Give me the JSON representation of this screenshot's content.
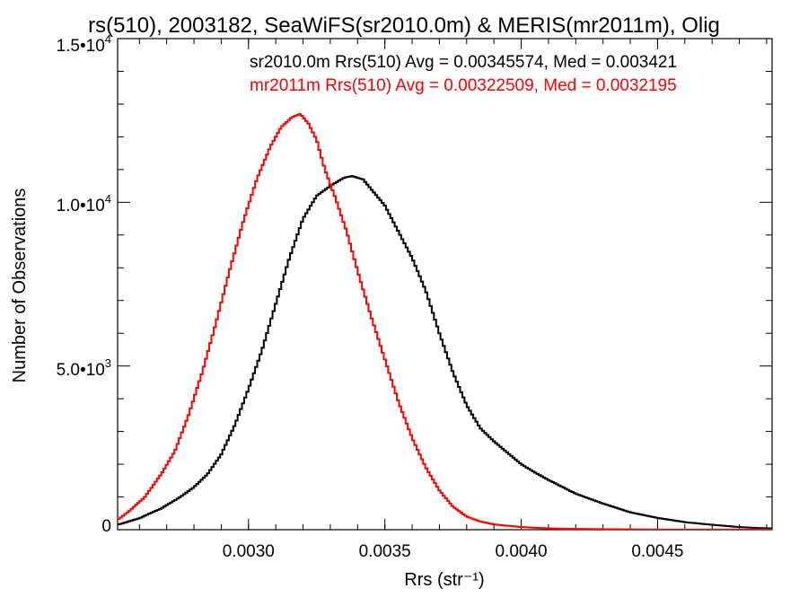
{
  "chart_data": {
    "type": "line",
    "title": "rs(510), 2003182, SeaWiFS(sr2010.0m) & MERIS(mr2011m), Olig",
    "xlabel": "Rrs (str⁻¹)",
    "ylabel": "Number of Observations",
    "xlim": [
      0.00252,
      0.00492
    ],
    "ylim": [
      0,
      15000
    ],
    "grid": false,
    "x_ticks": [
      {
        "value": 0.003,
        "label": "0.0030"
      },
      {
        "value": 0.0035,
        "label": "0.0035"
      },
      {
        "value": 0.004,
        "label": "0.0040"
      },
      {
        "value": 0.0045,
        "label": "0.0045"
      }
    ],
    "y_ticks": [
      {
        "value": 0,
        "label": "0"
      },
      {
        "value": 5000,
        "label": "5.0•103"
      },
      {
        "value": 10000,
        "label": "1.0•104"
      },
      {
        "value": 15000,
        "label": "1.5•104"
      }
    ],
    "y_tick_labels": {
      "t0": "0",
      "t1_mant": "5.0•10",
      "t1_exp": "3",
      "t2_mant": "1.0•10",
      "t2_exp": "4",
      "t3_mant": "1.5•10",
      "t3_exp": "4"
    },
    "annotations": {
      "black": "sr2010.0m Rrs(510) Avg = 0.00345574, Med = 0.003421",
      "red": "mr2011m Rrs(510) Avg = 0.00322509, Med = 0.0032195"
    },
    "series": [
      {
        "color": "#000000",
        "x": [
          0.00252,
          0.0026,
          0.00268,
          0.00275,
          0.0028,
          0.00285,
          0.0029,
          0.00295,
          0.003,
          0.00305,
          0.0031,
          0.00315,
          0.0032,
          0.00325,
          0.0033,
          0.00335,
          0.00338,
          0.00342,
          0.00345,
          0.0035,
          0.00355,
          0.0036,
          0.00365,
          0.0037,
          0.00375,
          0.0038,
          0.00385,
          0.0039,
          0.00395,
          0.004,
          0.00405,
          0.0041,
          0.00415,
          0.0042,
          0.0043,
          0.0044,
          0.0045,
          0.0046,
          0.0047,
          0.0048,
          0.0049
        ],
        "y": [
          150,
          350,
          650,
          1000,
          1300,
          1700,
          2300,
          3200,
          4300,
          5500,
          6900,
          8300,
          9500,
          10200,
          10500,
          10750,
          10800,
          10700,
          10400,
          9900,
          9100,
          8300,
          7300,
          6000,
          4800,
          3800,
          3100,
          2700,
          2350,
          2000,
          1750,
          1520,
          1310,
          1100,
          800,
          530,
          360,
          230,
          150,
          80,
          40
        ]
      },
      {
        "color": "#ff0000",
        "x": [
          0.00252,
          0.00256,
          0.00262,
          0.00268,
          0.00273,
          0.00278,
          0.00283,
          0.00288,
          0.00293,
          0.00298,
          0.00303,
          0.00308,
          0.00312,
          0.00316,
          0.00319,
          0.00322,
          0.00325,
          0.00328,
          0.00332,
          0.00336,
          0.0034,
          0.00345,
          0.0035,
          0.00355,
          0.0036,
          0.00365,
          0.0037,
          0.00375,
          0.0038,
          0.00385,
          0.0039,
          0.004,
          0.0041,
          0.0042,
          0.0043,
          0.0044,
          0.0045,
          0.0046,
          0.0047,
          0.0048,
          0.0049
        ],
        "y": [
          300,
          550,
          1000,
          1700,
          2400,
          3500,
          4800,
          6300,
          7900,
          9400,
          10700,
          11700,
          12300,
          12600,
          12700,
          12400,
          11900,
          11000,
          10100,
          9100,
          7900,
          6500,
          5200,
          3900,
          2800,
          1900,
          1200,
          700,
          400,
          250,
          160,
          80,
          40,
          25,
          15,
          10,
          5,
          5,
          3,
          2,
          2
        ]
      }
    ]
  }
}
